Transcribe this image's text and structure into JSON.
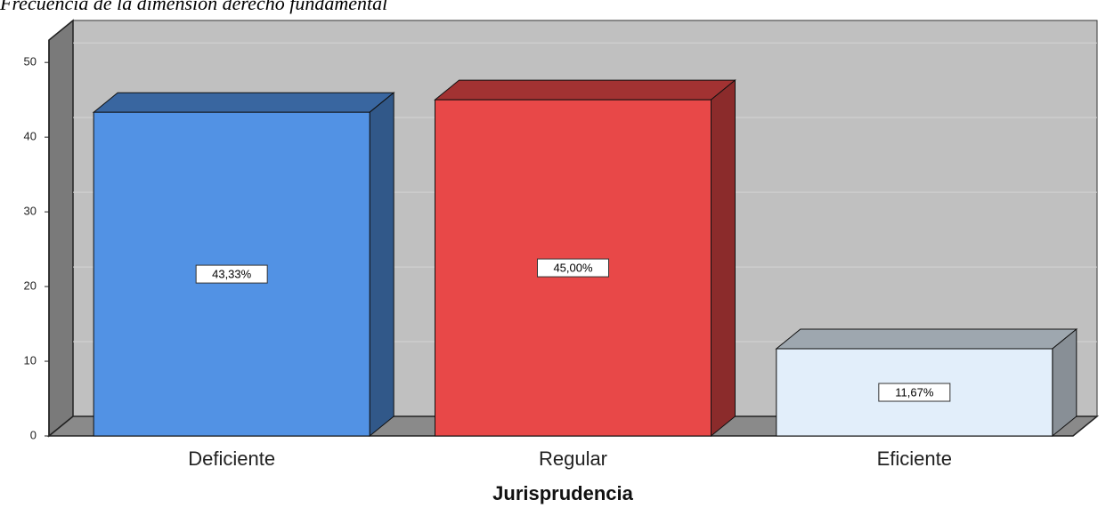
{
  "chart_data": {
    "type": "bar3d",
    "title": "Frecuencia de la dimensión derecho fundamental",
    "x_label": "Jurisprudencia",
    "categories": [
      "Deficiente",
      "Regular",
      "Eficiente"
    ],
    "values": [
      43.33,
      45.0,
      11.67
    ],
    "value_labels": [
      "43,33%",
      "45,00%",
      "11,67%"
    ],
    "colors": [
      "#5292e4",
      "#e84848",
      "#e2eefa"
    ],
    "ylim": [
      0,
      53
    ],
    "yticks": [
      0,
      10,
      20,
      30,
      40,
      50
    ],
    "grid": true
  }
}
